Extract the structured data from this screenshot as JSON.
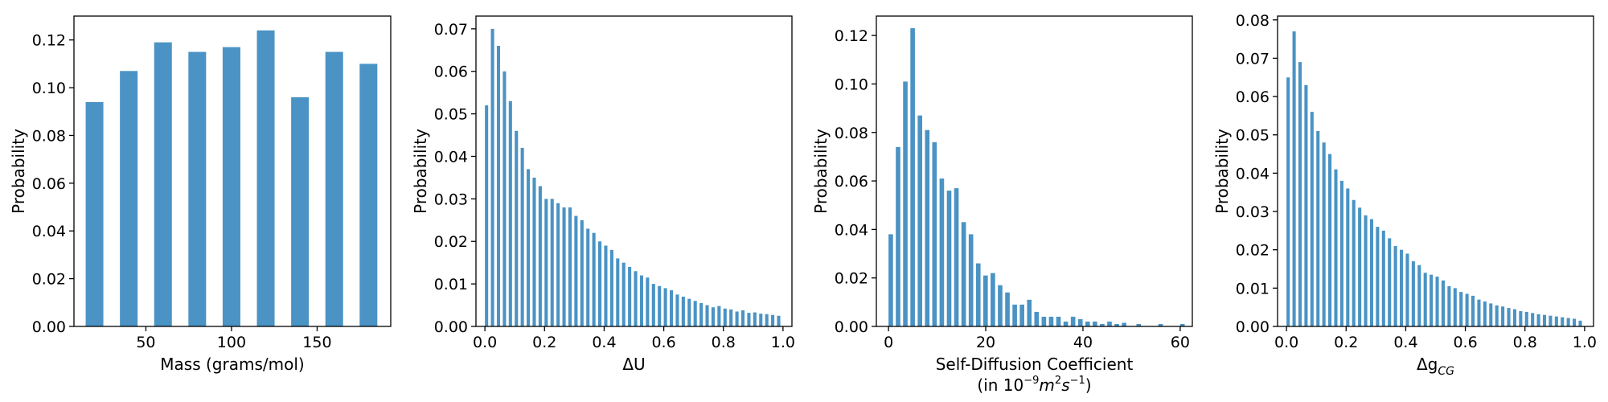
{
  "chart_data": [
    {
      "type": "bar",
      "xlabel": "Mass (grams/mol)",
      "ylabel": "Probability",
      "xlim": [
        8,
        193
      ],
      "ylim": [
        0,
        0.13
      ],
      "xticks": [
        50,
        100,
        150
      ],
      "xtick_labels": [
        "50",
        "100",
        "150"
      ],
      "yticks": [
        0,
        0.02,
        0.04,
        0.06,
        0.08,
        0.1,
        0.12
      ],
      "ytick_labels": [
        "0.00",
        "0.02",
        "0.04",
        "0.06",
        "0.08",
        "0.10",
        "0.12"
      ],
      "x": [
        20,
        40,
        60,
        80,
        100,
        120,
        140,
        160,
        180
      ],
      "values": [
        0.094,
        0.107,
        0.119,
        0.115,
        0.117,
        0.124,
        0.096,
        0.115,
        0.11
      ]
    },
    {
      "type": "bar",
      "xlabel": "ΔU",
      "ylabel": "Probability",
      "xlim": [
        -0.03,
        1.03
      ],
      "ylim": [
        0,
        0.073
      ],
      "xticks": [
        0.0,
        0.2,
        0.4,
        0.6,
        0.8,
        1.0
      ],
      "xtick_labels": [
        "0.0",
        "0.2",
        "0.4",
        "0.6",
        "0.8",
        "1.0"
      ],
      "yticks": [
        0,
        0.01,
        0.02,
        0.03,
        0.04,
        0.05,
        0.06,
        0.07
      ],
      "ytick_labels": [
        "0.00",
        "0.01",
        "0.02",
        "0.03",
        "0.04",
        "0.05",
        "0.06",
        "0.07"
      ],
      "x_start": 0.0,
      "x_step": 0.02,
      "values": [
        0.052,
        0.07,
        0.066,
        0.06,
        0.053,
        0.046,
        0.042,
        0.037,
        0.035,
        0.033,
        0.03,
        0.03,
        0.029,
        0.028,
        0.028,
        0.026,
        0.025,
        0.023,
        0.022,
        0.02,
        0.019,
        0.018,
        0.016,
        0.015,
        0.014,
        0.013,
        0.012,
        0.0115,
        0.01,
        0.0095,
        0.009,
        0.0085,
        0.0075,
        0.007,
        0.0065,
        0.006,
        0.0055,
        0.005,
        0.0045,
        0.0048,
        0.0042,
        0.004,
        0.0035,
        0.0038,
        0.0032,
        0.0033,
        0.003,
        0.0029,
        0.0027,
        0.0025
      ]
    },
    {
      "type": "bar",
      "xlabel": "Self-Diffusion Coefficient",
      "xlabel2_prefix": "(in 10",
      "xlabel2_exp": "−9",
      "xlabel2_mid": "m",
      "xlabel2_sq": "2",
      "xlabel2_s": "s",
      "xlabel2_exp2": "−1",
      "xlabel2_suffix": ")",
      "ylabel": "Probability",
      "xlim": [
        -2.5,
        62.5
      ],
      "ylim": [
        0,
        0.128
      ],
      "xticks": [
        0,
        20,
        40,
        60
      ],
      "xtick_labels": [
        "0",
        "20",
        "40",
        "60"
      ],
      "yticks": [
        0,
        0.02,
        0.04,
        0.06,
        0.08,
        0.1,
        0.12
      ],
      "ytick_labels": [
        "0.00",
        "0.02",
        "0.04",
        "0.06",
        "0.08",
        "0.10",
        "0.12"
      ],
      "x_start": 0.0,
      "x_step": 1.5,
      "values": [
        0.038,
        0.074,
        0.101,
        0.123,
        0.087,
        0.081,
        0.076,
        0.061,
        0.056,
        0.057,
        0.043,
        0.038,
        0.026,
        0.021,
        0.022,
        0.017,
        0.014,
        0.009,
        0.009,
        0.011,
        0.006,
        0.004,
        0.004,
        0.004,
        0.002,
        0.004,
        0.003,
        0.002,
        0.002,
        0.001,
        0.002,
        0.001,
        0.0015,
        0.0,
        0.001,
        0.0,
        0.0,
        0.001,
        0.0,
        0.0,
        0.001
      ]
    },
    {
      "type": "bar",
      "xlabel": "Δg",
      "xlabel_sub": "CG",
      "ylabel": "Probability",
      "xlim": [
        -0.03,
        1.03
      ],
      "ylim": [
        0,
        0.081
      ],
      "xticks": [
        0.0,
        0.2,
        0.4,
        0.6,
        0.8,
        1.0
      ],
      "xtick_labels": [
        "0.0",
        "0.2",
        "0.4",
        "0.6",
        "0.8",
        "1.0"
      ],
      "yticks": [
        0,
        0.01,
        0.02,
        0.03,
        0.04,
        0.05,
        0.06,
        0.07,
        0.08
      ],
      "ytick_labels": [
        "0.00",
        "0.01",
        "0.02",
        "0.03",
        "0.04",
        "0.05",
        "0.06",
        "0.07",
        "0.08"
      ],
      "x_start": 0.0,
      "x_step": 0.02,
      "values": [
        0.065,
        0.077,
        0.069,
        0.063,
        0.056,
        0.051,
        0.048,
        0.045,
        0.041,
        0.038,
        0.036,
        0.033,
        0.031,
        0.029,
        0.028,
        0.026,
        0.025,
        0.023,
        0.021,
        0.02,
        0.019,
        0.017,
        0.016,
        0.014,
        0.0135,
        0.013,
        0.012,
        0.0105,
        0.01,
        0.009,
        0.0085,
        0.008,
        0.007,
        0.0065,
        0.006,
        0.0055,
        0.0052,
        0.0048,
        0.0045,
        0.004,
        0.0038,
        0.0035,
        0.0032,
        0.003,
        0.0028,
        0.0026,
        0.0024,
        0.0022,
        0.002,
        0.0015
      ]
    }
  ]
}
